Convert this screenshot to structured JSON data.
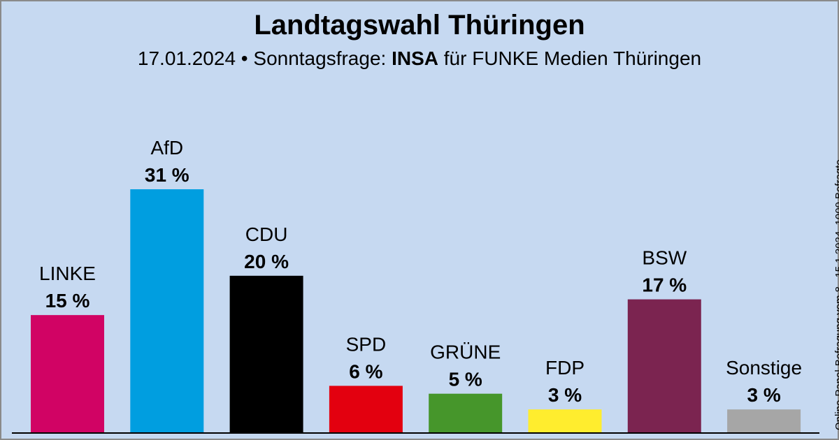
{
  "header": {
    "title": "Landtagswahl Thüringen",
    "subtitle_prefix": "17.01.2024 • Sonntagsfrage: ",
    "subtitle_institute": "INSA",
    "subtitle_suffix": " für FUNKE Medien Thüringen"
  },
  "side_note": "Online-Panel-Befragung vom 8.–15.1.2024, 1000 Befragte",
  "chart_data": {
    "type": "bar",
    "title": "Landtagswahl Thüringen",
    "categories": [
      "LINKE",
      "AfD",
      "CDU",
      "SPD",
      "GRÜNE",
      "FDP",
      "BSW",
      "Sonstige"
    ],
    "values": [
      15,
      31,
      20,
      6,
      5,
      3,
      17,
      3
    ],
    "value_labels": [
      "15 %",
      "31 %",
      "20 %",
      "6 %",
      "5 %",
      "3 %",
      "17 %",
      "3 %"
    ],
    "colors": [
      "#d10364",
      "#009ee0",
      "#000000",
      "#e3000f",
      "#46962b",
      "#ffed2e",
      "#7b2450",
      "#a6a6a6"
    ],
    "unit": "%",
    "ylim": [
      0,
      31
    ],
    "grid": false,
    "legend": "none"
  }
}
